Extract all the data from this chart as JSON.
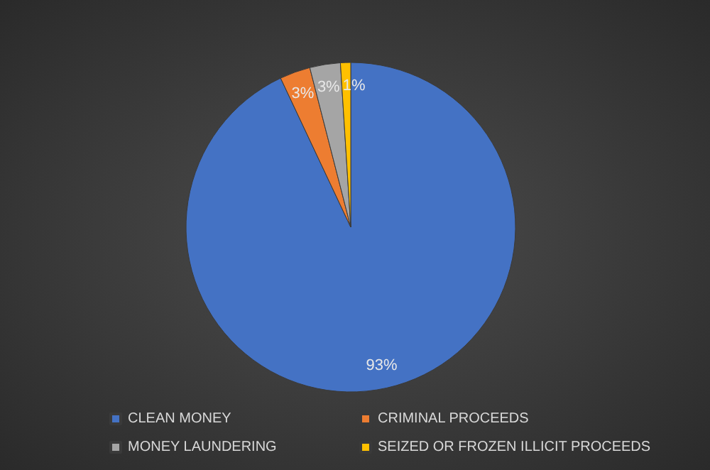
{
  "chart_data": {
    "type": "pie",
    "categories": [
      "CLEAN MONEY",
      "CRIMINAL PROCEEDS",
      "MONEY LAUNDERING",
      "SEIZED OR FROZEN ILLICIT PROCEEDS"
    ],
    "values": [
      93,
      3,
      3,
      1
    ],
    "colors": [
      "#4472c4",
      "#ed7d31",
      "#a5a5a5",
      "#ffc000"
    ],
    "value_labels": [
      "93%",
      "3%",
      "3%",
      "1%"
    ],
    "legend": "bottom"
  }
}
